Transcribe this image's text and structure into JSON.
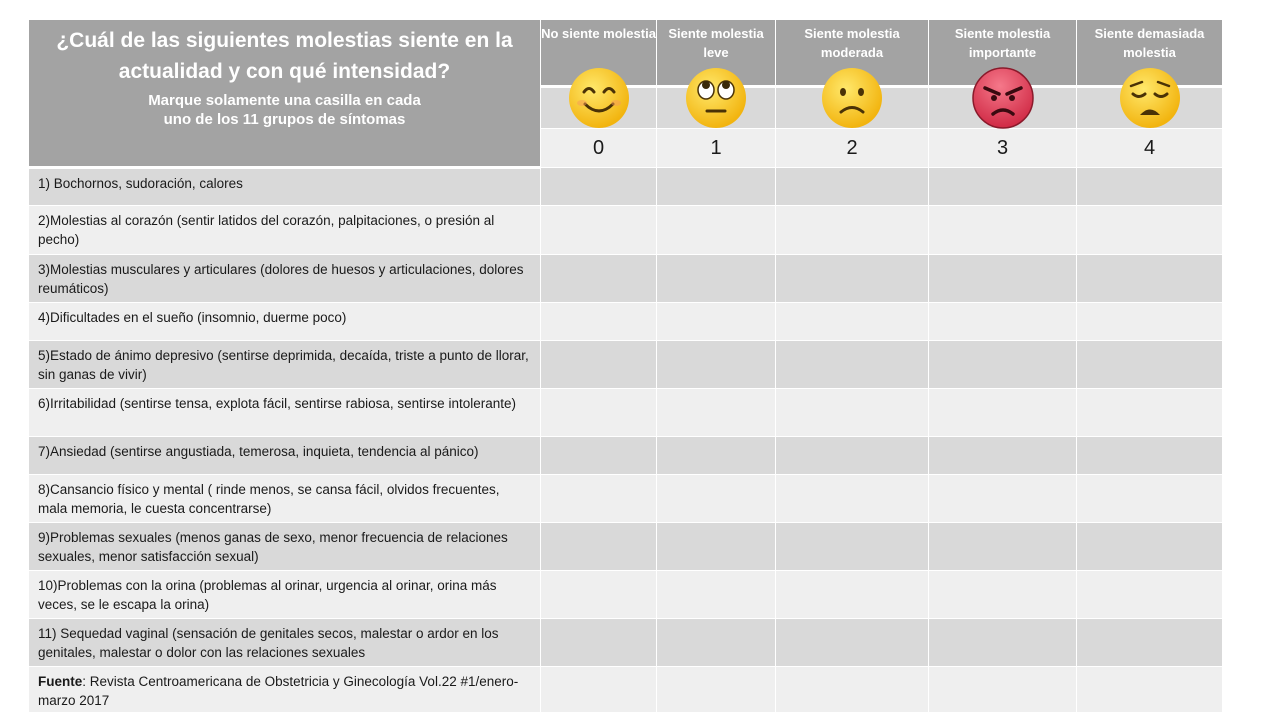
{
  "header": {
    "question": "¿Cuál de las siguientes molestias siente en la actualidad y con qué intensidad?",
    "instruction_line1": "Marque solamente una casilla en cada",
    "instruction_line2": "uno de los 11 grupos de síntomas"
  },
  "scale": [
    {
      "label": "No siente molestia",
      "value": "0",
      "icon": "smiling-face-icon"
    },
    {
      "label": "Siente molestia leve",
      "value": "1",
      "icon": "eye-roll-face-icon"
    },
    {
      "label": "Siente molestia moderada",
      "value": "2",
      "icon": "frowning-face-icon"
    },
    {
      "label": "Siente molestia importante",
      "value": "3",
      "icon": "angry-face-icon"
    },
    {
      "label": "Siente demasiada molestia",
      "value": "4",
      "icon": "disappointed-face-icon"
    }
  ],
  "symptoms": [
    "1) Bochornos, sudoración, calores",
    "2)Molestias al corazón (sentir latidos del corazón, palpitaciones, o presión al pecho)",
    "3)Molestias musculares y articulares (dolores de huesos y articulaciones, dolores reumáticos)",
    "4)Dificultades en el sueño (insomnio, duerme poco)",
    "5)Estado de ánimo depresivo (sentirse deprimida, decaída, triste a punto de llorar, sin ganas de vivir)",
    "6)Irritabilidad (sentirse tensa, explota fácil, sentirse rabiosa, sentirse intolerante)",
    "7)Ansiedad (sentirse angustiada, temerosa, inquieta, tendencia al pánico)",
    "8)Cansancio físico y mental ( rinde menos, se cansa fácil, olvidos frecuentes, mala memoria, le cuesta concentrarse)",
    "9)Problemas sexuales (menos ganas de sexo, menor frecuencia de relaciones sexuales, menor satisfacción sexual)",
    "10)Problemas con la orina (problemas al orinar, urgencia al orinar, orina más veces, se le escapa la orina)",
    "11) Sequedad vaginal (sensación de genitales secos, malestar o ardor en los genitales, malestar o dolor con las relaciones sexuales"
  ],
  "source": {
    "label": "Fuente",
    "text": ": Revista Centroamericana de Obstetricia y Ginecología Vol.22 #1/enero-marzo 2017"
  },
  "colors": {
    "header_gray": "#a3a3a3",
    "row_dark": "#d9d9d9",
    "row_light": "#efefef",
    "emoji_yellow": "#f7c21b",
    "emoji_red": "#e23a4f"
  }
}
